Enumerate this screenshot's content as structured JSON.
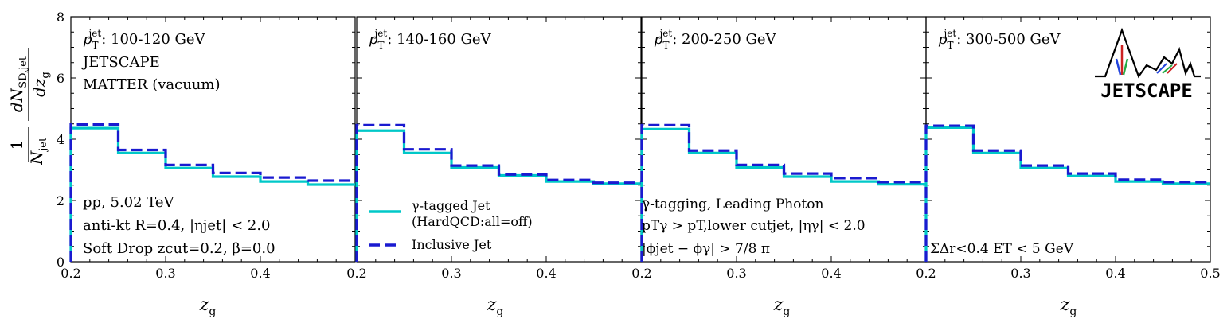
{
  "figure": {
    "ylabel": {
      "frac_num": "1",
      "frac_den_main": "N",
      "frac_den_sub": "jet",
      "d_num_main": "dN",
      "d_num_sub": "SD,jet",
      "d_den_main": "dz",
      "d_den_sub": "g"
    },
    "xlabel": {
      "main": "z",
      "sub": "g"
    },
    "logo_text": "JETSCAPE"
  },
  "chart_data": [
    {
      "type": "line",
      "panel_label": {
        "main": "p",
        "sub": "T",
        "sup": "jet",
        "range": ": 100-120 GeV"
      },
      "annotations_top": [
        "JETSCAPE",
        "MATTER (vacuum)"
      ],
      "annotations_bottom": [
        "pp, 5.02 TeV",
        "anti-kt R=0.4, |ηjet| < 2.0",
        "Soft Drop zcut=0.2, β=0.0"
      ],
      "bin_edges": [
        0.2,
        0.25,
        0.3,
        0.35,
        0.4,
        0.45,
        0.5
      ],
      "series": [
        {
          "name": "γ-tagged Jet (HardQCD:all=off)",
          "color": "#00c8c8",
          "style": "solid",
          "values": [
            4.36,
            3.55,
            3.06,
            2.78,
            2.62,
            2.52
          ]
        },
        {
          "name": "Inclusive Jet",
          "color": "#1a1ad0",
          "style": "dashed",
          "values": [
            4.48,
            3.65,
            3.16,
            2.9,
            2.75,
            2.65
          ]
        }
      ],
      "xlim": [
        0.2,
        0.5
      ],
      "ylim": [
        0,
        8
      ],
      "xticks": [
        "0.2",
        "0.3",
        "0.4"
      ],
      "yticks": [
        "0",
        "2",
        "4",
        "6",
        "8"
      ]
    },
    {
      "type": "line",
      "panel_label": {
        "main": "p",
        "sub": "T",
        "sup": "jet",
        "range": ": 140-160 GeV"
      },
      "legend": [
        {
          "label": "γ-tagged Jet",
          "label2": "(HardQCD:all=off)",
          "color": "#00c8c8",
          "style": "solid"
        },
        {
          "label": "Inclusive Jet",
          "label2": "",
          "color": "#1a1ad0",
          "style": "dashed"
        }
      ],
      "bin_edges": [
        0.2,
        0.25,
        0.3,
        0.35,
        0.4,
        0.45,
        0.5
      ],
      "series": [
        {
          "name": "γ-tagged Jet (HardQCD:all=off)",
          "color": "#00c8c8",
          "style": "solid",
          "values": [
            4.28,
            3.55,
            3.08,
            2.82,
            2.62,
            2.55
          ]
        },
        {
          "name": "Inclusive Jet",
          "color": "#1a1ad0",
          "style": "dashed",
          "values": [
            4.46,
            3.67,
            3.14,
            2.85,
            2.67,
            2.58
          ]
        }
      ],
      "xlim": [
        0.2,
        0.5
      ],
      "ylim": [
        0,
        8
      ],
      "xticks": [
        "0.2",
        "0.3",
        "0.4"
      ]
    },
    {
      "type": "line",
      "panel_label": {
        "main": "p",
        "sub": "T",
        "sup": "jet",
        "range": ": 200-250 GeV"
      },
      "annotations_bottom": [
        "γ-tagging, Leading Photon",
        "pTγ > pT,lower cutjet, |ηγ| < 2.0",
        "|ϕjet − ϕγ| > 7/8 π"
      ],
      "bin_edges": [
        0.2,
        0.25,
        0.3,
        0.35,
        0.4,
        0.45,
        0.5
      ],
      "series": [
        {
          "name": "γ-tagged Jet (HardQCD:all=off)",
          "color": "#00c8c8",
          "style": "solid",
          "values": [
            4.33,
            3.55,
            3.08,
            2.78,
            2.62,
            2.53
          ]
        },
        {
          "name": "Inclusive Jet",
          "color": "#1a1ad0",
          "style": "dashed",
          "values": [
            4.46,
            3.63,
            3.16,
            2.88,
            2.73,
            2.6
          ]
        }
      ],
      "xlim": [
        0.2,
        0.5
      ],
      "ylim": [
        0,
        8
      ],
      "xticks": [
        "0.2",
        "0.3",
        "0.4"
      ]
    },
    {
      "type": "line",
      "panel_label": {
        "main": "p",
        "sub": "T",
        "sup": "jet",
        "range": ": 300-500 GeV"
      },
      "annotations_bottom": [
        "ΣΔr<0.4 ET < 5 GeV"
      ],
      "bin_edges": [
        0.2,
        0.25,
        0.3,
        0.35,
        0.4,
        0.45,
        0.5
      ],
      "series": [
        {
          "name": "γ-tagged Jet (HardQCD:all=off)",
          "color": "#00c8c8",
          "style": "solid",
          "values": [
            4.38,
            3.55,
            3.06,
            2.8,
            2.62,
            2.55
          ]
        },
        {
          "name": "Inclusive Jet",
          "color": "#1a1ad0",
          "style": "dashed",
          "values": [
            4.44,
            3.63,
            3.14,
            2.88,
            2.68,
            2.6
          ]
        }
      ],
      "xlim": [
        0.2,
        0.5
      ],
      "ylim": [
        0,
        8
      ],
      "xticks": [
        "0.2",
        "0.3",
        "0.4",
        "0.5"
      ]
    }
  ]
}
